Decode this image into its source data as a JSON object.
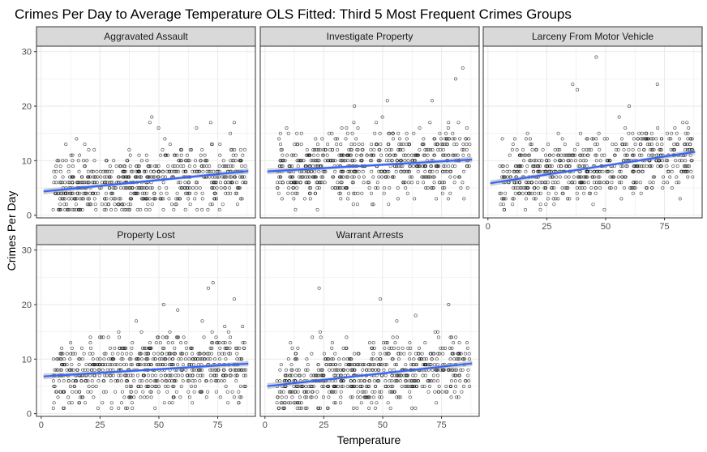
{
  "chart_data": {
    "type": "scatter",
    "title": "Crimes Per Day to Average Temperature OLS Fitted: Third 5 Most Frequent Crimes Groups",
    "xlabel": "Temperature",
    "ylabel": "Crimes Per Day",
    "xlim": [
      -2,
      91
    ],
    "ylim": [
      -0.5,
      31
    ],
    "x_ticks": [
      0,
      25,
      50,
      75
    ],
    "y_ticks": [
      0,
      10,
      20,
      30
    ],
    "grid": true,
    "colors": {
      "points": "#000000",
      "fit_line": "#3366ff",
      "confidence_band": "#999999",
      "strip_bg": "#d9d9d9",
      "grid": "#ebebeb",
      "panel_border": "#333333"
    },
    "panels": [
      {
        "name": "Aggravated Assault",
        "fit": {
          "intercept": 4.3,
          "slope": 0.043
        },
        "point_spread": {
          "mean_low": 2,
          "mean_high": 17,
          "max": 18
        },
        "extreme_points": [
          {
            "x": 47,
            "y": 18
          },
          {
            "x": 72,
            "y": 17
          },
          {
            "x": 82,
            "y": 17
          },
          {
            "x": 66,
            "y": 16
          },
          {
            "x": 15,
            "y": 14
          }
        ]
      },
      {
        "name": "Investigate Property",
        "fit": {
          "intercept": 8.0,
          "slope": 0.025
        },
        "point_spread": {
          "mean_low": 2,
          "mean_high": 21,
          "max": 27
        },
        "extreme_points": [
          {
            "x": 84,
            "y": 27
          },
          {
            "x": 81,
            "y": 25
          },
          {
            "x": 71,
            "y": 21
          },
          {
            "x": 52,
            "y": 21
          },
          {
            "x": 38,
            "y": 20
          }
        ]
      },
      {
        "name": "Larceny From Motor Vehicle",
        "fit": {
          "intercept": 5.8,
          "slope": 0.066
        },
        "point_spread": {
          "mean_low": 2,
          "mean_high": 20,
          "max": 29
        },
        "extreme_points": [
          {
            "x": 46,
            "y": 29
          },
          {
            "x": 36,
            "y": 24
          },
          {
            "x": 72,
            "y": 24
          },
          {
            "x": 38,
            "y": 23
          },
          {
            "x": 60,
            "y": 20
          }
        ]
      },
      {
        "name": "Property Lost",
        "fit": {
          "intercept": 6.8,
          "slope": 0.027
        },
        "point_spread": {
          "mean_low": 2,
          "mean_high": 18,
          "max": 24
        },
        "extreme_points": [
          {
            "x": 73,
            "y": 24
          },
          {
            "x": 71,
            "y": 23
          },
          {
            "x": 52,
            "y": 20
          },
          {
            "x": 82,
            "y": 21
          },
          {
            "x": 58,
            "y": 19
          }
        ]
      },
      {
        "name": "Warrant Arrests",
        "fit": {
          "intercept": 5.0,
          "slope": 0.048
        },
        "point_spread": {
          "mean_low": 2,
          "mean_high": 19,
          "max": 23
        },
        "extreme_points": [
          {
            "x": 23,
            "y": 23
          },
          {
            "x": 49,
            "y": 21
          },
          {
            "x": 78,
            "y": 20
          },
          {
            "x": 64,
            "y": 18
          },
          {
            "x": 56,
            "y": 17
          }
        ]
      }
    ]
  }
}
